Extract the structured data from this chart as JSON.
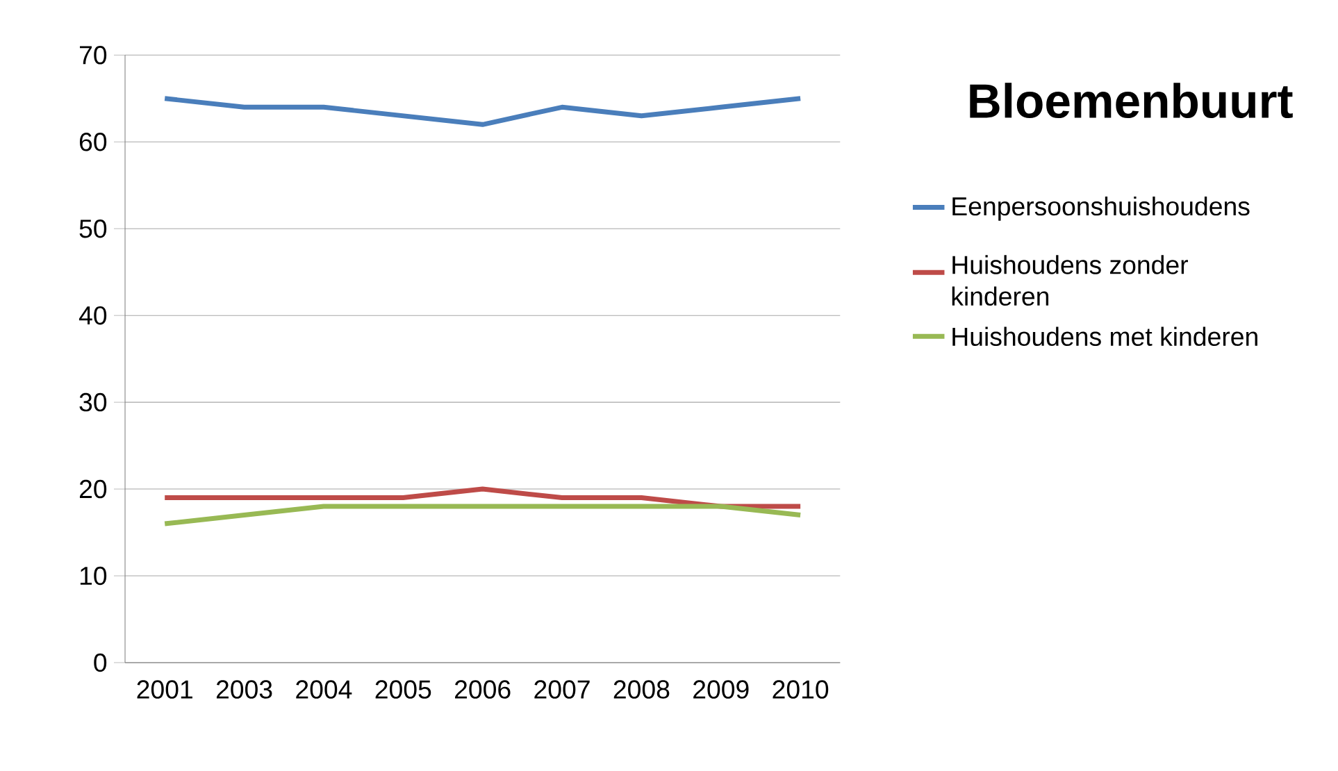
{
  "chart_data": {
    "type": "line",
    "title": "Bloemenbuurt",
    "categories": [
      "2001",
      "2003",
      "2004",
      "2005",
      "2006",
      "2007",
      "2008",
      "2009",
      "2010"
    ],
    "series": [
      {
        "name": "Eenpersoonshuishoudens",
        "color": "#4a7ebb",
        "values": [
          65,
          64,
          64,
          63,
          62,
          64,
          63,
          64,
          65
        ]
      },
      {
        "name": "Huishoudens zonder kinderen",
        "color": "#be4b48",
        "values": [
          19,
          19,
          19,
          19,
          20,
          19,
          19,
          18,
          18
        ]
      },
      {
        "name": "Huishoudens met kinderen",
        "color": "#98b954",
        "values": [
          16,
          17,
          18,
          18,
          18,
          18,
          18,
          18,
          17
        ]
      }
    ],
    "ylim": [
      0,
      70
    ],
    "yticks": [
      0,
      10,
      20,
      30,
      40,
      50,
      60,
      70
    ],
    "grid": "y",
    "legend": "right",
    "marker": "none",
    "line_style": "solid"
  }
}
